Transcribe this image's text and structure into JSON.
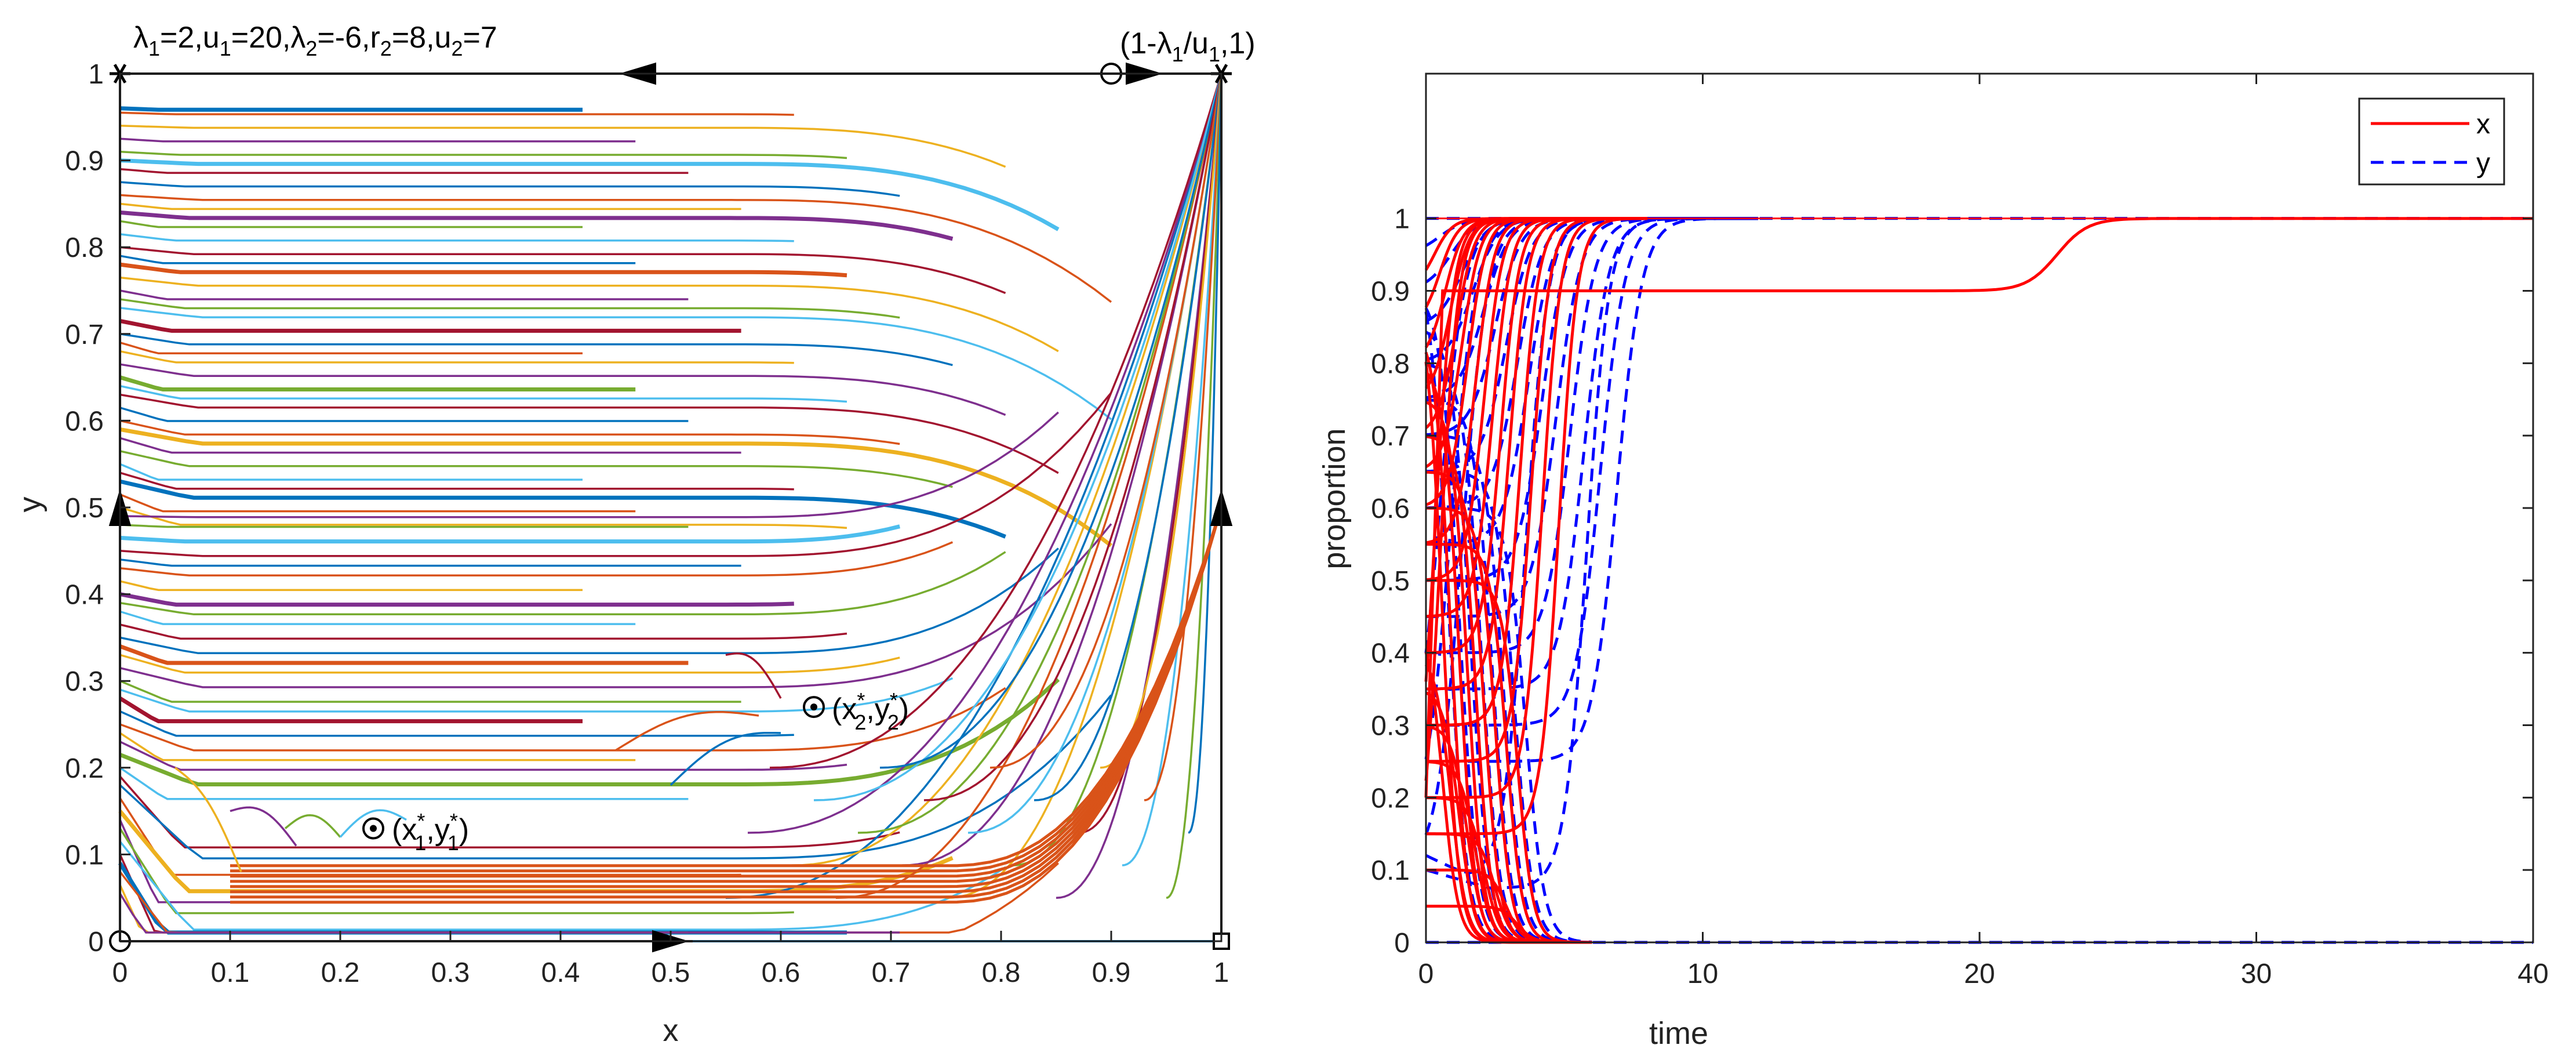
{
  "chart_data": [
    {
      "type": "line",
      "subtype": "phase-portrait",
      "title": "λ1=2,u1=20,λ2=-6,r2=8,u2=7",
      "title_parts": {
        "l1": "λ",
        "s1": "1",
        "t1": "=2,u",
        "s2": "1",
        "t2": "=20,",
        "l2": "λ",
        "s3": "2",
        "t3": "=-6,r",
        "s4": "2",
        "t4": "=8,u",
        "s5": "2",
        "t5": "=7"
      },
      "xlabel": "x",
      "ylabel": "y",
      "xlim": [
        0,
        1
      ],
      "ylim": [
        0,
        1
      ],
      "xticks": [
        "0",
        "0.1",
        "0.2",
        "0.3",
        "0.4",
        "0.5",
        "0.6",
        "0.7",
        "0.8",
        "0.9",
        "1"
      ],
      "yticks": [
        "0",
        "0.1",
        "0.2",
        "0.3",
        "0.4",
        "0.5",
        "0.6",
        "0.7",
        "0.8",
        "0.9",
        "1"
      ],
      "params": {
        "lambda1": 2,
        "u1": 20,
        "lambda2": -6,
        "r2": 8,
        "u2": 7
      },
      "equilibria": [
        {
          "name": "origin",
          "x": 0,
          "y": 0,
          "marker": "circle"
        },
        {
          "name": "top-left",
          "x": 0,
          "y": 1,
          "marker": "star"
        },
        {
          "name": "top-right",
          "x": 1,
          "y": 1,
          "marker": "star"
        },
        {
          "name": "bottom-right",
          "x": 1,
          "y": 0,
          "marker": "square"
        },
        {
          "name": "top-edge",
          "x": 0.9,
          "y": 1,
          "marker": "circle"
        },
        {
          "name": "interior-1",
          "x": 0.23,
          "y": 0.13,
          "marker": "circle-dot"
        },
        {
          "name": "interior-2",
          "x": 0.63,
          "y": 0.27,
          "marker": "circle-dot"
        }
      ],
      "annotations": {
        "corner": {
          "a": "(1-",
          "b": "λ",
          "c": "1",
          "d": "/u",
          "e": "1",
          "f": ",1)"
        },
        "p1": {
          "a": "(x",
          "b": "*",
          "c": "1",
          "d": ",y",
          "e": "*",
          "f": "1",
          "g": ")"
        },
        "p2": {
          "a": "(x",
          "b": "*",
          "c": "2",
          "d": ",y",
          "e": "*",
          "f": "2",
          "g": ")"
        }
      },
      "streamline_start_y": [
        0.96,
        0.955,
        0.94,
        0.925,
        0.91,
        0.9,
        0.89,
        0.875,
        0.86,
        0.85,
        0.84,
        0.83,
        0.815,
        0.8,
        0.79,
        0.78,
        0.765,
        0.75,
        0.74,
        0.73,
        0.715,
        0.7,
        0.69,
        0.68,
        0.665,
        0.65,
        0.64,
        0.63,
        0.615,
        0.6,
        0.59,
        0.58,
        0.565,
        0.55,
        0.54,
        0.53,
        0.515,
        0.5,
        0.49,
        0.48,
        0.465,
        0.45,
        0.44,
        0.43,
        0.415,
        0.4,
        0.39,
        0.38,
        0.365,
        0.35,
        0.34,
        0.33,
        0.315,
        0.3,
        0.29,
        0.28,
        0.265,
        0.25,
        0.24,
        0.23,
        0.215,
        0.2,
        0.19,
        0.18,
        0.165,
        0.15,
        0.14,
        0.13,
        0.115,
        0.1,
        0.09,
        0.08,
        0.065,
        0.055
      ],
      "line_colors": [
        "#0072BD",
        "#D95319",
        "#EDB120",
        "#7E2F8E",
        "#77AC30",
        "#4DBEEE",
        "#A2142F"
      ],
      "boundary_colors": {
        "top": "#A2142F",
        "bottom": "#0072BD",
        "edge": "#000000"
      }
    },
    {
      "type": "line",
      "subtype": "time-series",
      "xlabel": "time",
      "ylabel": "proportion",
      "xlim": [
        0,
        40
      ],
      "ylim": [
        0,
        1.2
      ],
      "xticks": [
        "0",
        "10",
        "20",
        "30",
        "40"
      ],
      "yticks": [
        "0",
        "0.1",
        "0.2",
        "0.3",
        "0.4",
        "0.5",
        "0.6",
        "0.7",
        "0.8",
        "0.9",
        "1"
      ],
      "legend": {
        "position": "top-right",
        "entries": [
          {
            "name": "x",
            "color": "#FF0000",
            "style": "solid"
          },
          {
            "name": "y",
            "color": "#0000FF",
            "style": "dashed"
          }
        ]
      },
      "series": [
        {
          "name": "x",
          "color": "#FF0000",
          "style": "solid",
          "initial": [
            0.9,
            0.85,
            0.8,
            0.75,
            0.7,
            0.65,
            0.6,
            0.55,
            0.5,
            0.45,
            0.4,
            0.35,
            0.3,
            0.25,
            0.2,
            0.15,
            0.1,
            0.05
          ],
          "rise_times": [
            0.3,
            0.5,
            0.7,
            0.9,
            1.1,
            1.3,
            1.5,
            1.8,
            2.1,
            2.4,
            2.7,
            3.0,
            3.4,
            3.8,
            4.2,
            4.8
          ],
          "fall_times": [
            0.6,
            0.9,
            1.2,
            1.5,
            1.8,
            2.1,
            2.5,
            2.9,
            3.3
          ],
          "plateau": {
            "level": 0.9,
            "start": 0.2,
            "switch_time": 22.8,
            "final": 1
          }
        },
        {
          "name": "y",
          "color": "#0000FF",
          "style": "dashed",
          "initial": [
            0.95,
            0.9,
            0.85,
            0.8,
            0.75,
            0.7,
            0.65,
            0.6,
            0.55,
            0.5,
            0.45,
            0.4,
            0.35,
            0.3,
            0.25,
            0.2,
            0.15,
            0.1
          ],
          "rise_times": [
            0.5,
            0.9,
            1.3,
            1.7,
            2.1,
            2.5,
            2.9,
            3.3,
            3.7,
            4.2,
            4.7,
            5.2,
            5.7,
            6.3,
            6.9
          ],
          "dip_curves": [
            {
              "start": 0.1,
              "min": 0.075,
              "min_time": 2.3,
              "rise_time": 5.8
            },
            {
              "start": 0.12,
              "min": 0.09,
              "min_time": 1.6,
              "rise_time": 3.6
            }
          ],
          "final": 1
        }
      ]
    }
  ]
}
